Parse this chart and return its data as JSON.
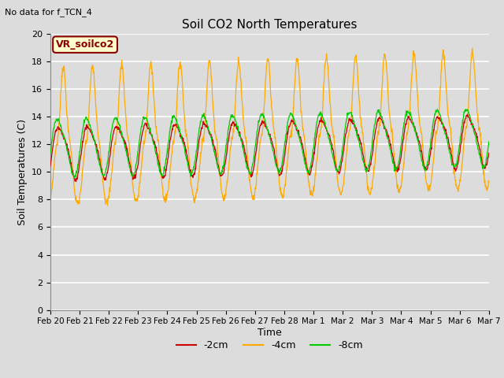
{
  "title": "Soil CO2 North Temperatures",
  "subtitle": "No data for f_TCN_4",
  "ylabel": "Soil Temperatures (C)",
  "xlabel": "Time",
  "box_label": "VR_soilco2",
  "color_2cm": "#cc0000",
  "color_4cm": "#ffaa00",
  "color_8cm": "#00cc00",
  "ylim": [
    0,
    20
  ],
  "yticks": [
    0,
    2,
    4,
    6,
    8,
    10,
    12,
    14,
    16,
    18,
    20
  ],
  "bg_color": "#dcdcdc",
  "xtick_labels": [
    "Feb 20",
    "Feb 21",
    "Feb 22",
    "Feb 23",
    "Feb 24",
    "Feb 25",
    "Feb 26",
    "Feb 27",
    "Feb 28",
    "Mar 1",
    "Mar 2",
    "Mar 3",
    "Mar 4",
    "Mar 5",
    "Mar 6",
    "Mar 7"
  ]
}
